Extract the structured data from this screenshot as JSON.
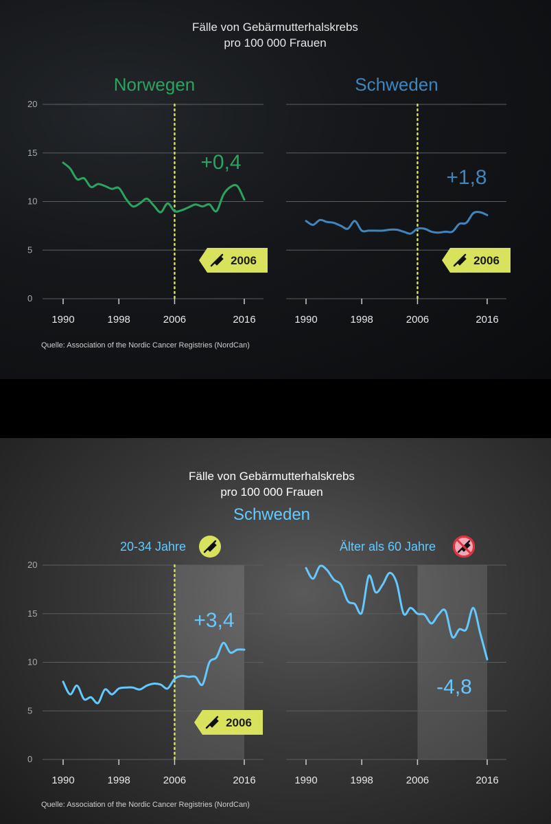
{
  "top": {
    "title_line1": "Fälle von Gebärmutterhalskrebs",
    "title_line2": "pro 100 000 Frauen",
    "source": "Quelle: Association of the Nordic Cancer Registries (NordCan)"
  },
  "bottom": {
    "title_line1": "Fälle von Gebärmutterhalskrebs",
    "title_line2": "pro 100 000 Frauen",
    "country": "Schweden",
    "source": "Quelle: Association of the Nordic Cancer Registries (NordCan)"
  },
  "colors": {
    "norway": "#2aa45f",
    "sweden": "#3f86bf",
    "bright_blue": "#63c9ff",
    "vaccine": "#d8e25c",
    "no_vaccine": "#f0a8b8"
  },
  "chart_data": [
    {
      "type": "line",
      "panel": "top-left",
      "title": "Norwegen",
      "x": [
        1990,
        1991,
        1992,
        1993,
        1994,
        1995,
        1996,
        1997,
        1998,
        1999,
        2000,
        2001,
        2002,
        2003,
        2004,
        2005,
        2006,
        2007,
        2008,
        2009,
        2010,
        2011,
        2012,
        2013,
        2014,
        2015,
        2016
      ],
      "series": [
        {
          "values": [
            14.0,
            13.4,
            12.3,
            12.4,
            11.5,
            11.8,
            11.6,
            11.3,
            11.4,
            10.3,
            9.5,
            9.8,
            10.3,
            9.6,
            8.9,
            9.8,
            9.0,
            9.1,
            9.4,
            9.7,
            9.5,
            9.7,
            9.0,
            10.7,
            11.5,
            11.6,
            10.2
          ]
        }
      ],
      "annotation": "+0,4",
      "marker_year": 2006,
      "marker_label": "2006",
      "yticks": [
        0,
        5,
        10,
        15,
        20
      ],
      "xticks": [
        1990,
        1998,
        2006,
        2016
      ],
      "ylim": [
        0,
        20
      ]
    },
    {
      "type": "line",
      "panel": "top-right",
      "title": "Schweden",
      "x": [
        1990,
        1991,
        1992,
        1993,
        1994,
        1995,
        1996,
        1997,
        1998,
        1999,
        2000,
        2001,
        2002,
        2003,
        2004,
        2005,
        2006,
        2007,
        2008,
        2009,
        2010,
        2011,
        2012,
        2013,
        2014,
        2015,
        2016
      ],
      "series": [
        {
          "values": [
            8.0,
            7.6,
            8.1,
            7.9,
            7.8,
            7.5,
            7.2,
            8.0,
            7.0,
            7.0,
            7.0,
            7.0,
            7.1,
            7.1,
            6.9,
            6.7,
            7.2,
            7.2,
            6.9,
            6.8,
            6.9,
            6.9,
            7.7,
            7.8,
            8.8,
            8.9,
            8.6
          ]
        }
      ],
      "annotation": "+1,8",
      "marker_year": 2006,
      "marker_label": "2006",
      "yticks": [
        0,
        5,
        10,
        15,
        20
      ],
      "xticks": [
        1990,
        1998,
        2006,
        2016
      ],
      "ylim": [
        0,
        20
      ]
    },
    {
      "type": "line",
      "panel": "bottom-left",
      "title": "20-34 Jahre",
      "x": [
        1990,
        1991,
        1992,
        1993,
        1994,
        1995,
        1996,
        1997,
        1998,
        1999,
        2000,
        2001,
        2002,
        2003,
        2004,
        2005,
        2006,
        2007,
        2008,
        2009,
        2010,
        2011,
        2012,
        2013,
        2014,
        2015,
        2016
      ],
      "series": [
        {
          "values": [
            8.0,
            6.7,
            7.6,
            6.2,
            6.4,
            5.8,
            7.2,
            6.7,
            7.3,
            7.4,
            7.4,
            7.2,
            7.6,
            7.8,
            7.7,
            7.3,
            8.3,
            8.6,
            8.5,
            8.5,
            7.7,
            10.0,
            10.5,
            12.0,
            11.0,
            11.3,
            11.3
          ]
        }
      ],
      "annotation": "+3,4",
      "marker_year": 2006,
      "marker_label": "2006",
      "yticks": [
        0,
        5,
        10,
        15,
        20
      ],
      "xticks": [
        1990,
        1998,
        2006,
        2016
      ],
      "ylim": [
        0,
        20
      ]
    },
    {
      "type": "line",
      "panel": "bottom-right",
      "title": "Älter als 60 Jahre",
      "x": [
        1990,
        1991,
        1992,
        1993,
        1994,
        1995,
        1996,
        1997,
        1998,
        1999,
        2000,
        2001,
        2002,
        2003,
        2004,
        2005,
        2006,
        2007,
        2008,
        2009,
        2010,
        2011,
        2012,
        2013,
        2014,
        2015,
        2016
      ],
      "series": [
        {
          "values": [
            19.7,
            18.6,
            19.9,
            19.5,
            18.5,
            18.0,
            16.3,
            16.0,
            15.1,
            18.9,
            17.2,
            18.0,
            19.2,
            18.2,
            15.0,
            15.6,
            15.0,
            14.9,
            14.0,
            14.9,
            15.3,
            12.6,
            13.4,
            13.4,
            15.6,
            13.0,
            10.3
          ]
        }
      ],
      "annotation": "-4,8",
      "yticks": [
        0,
        5,
        10,
        15,
        20
      ],
      "xticks": [
        1990,
        1998,
        2006,
        2016
      ],
      "ylim": [
        0,
        20
      ]
    }
  ]
}
